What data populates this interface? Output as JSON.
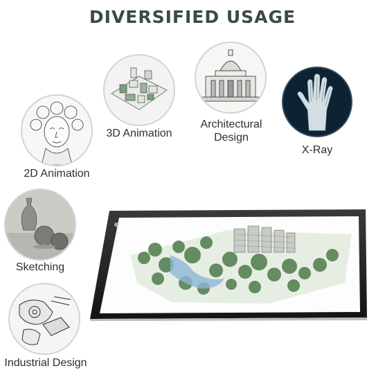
{
  "header": {
    "title": "DIVERSIFIED USAGE"
  },
  "usages": {
    "animation_3d": {
      "label": "3D Animation",
      "icon": "city-model-icon"
    },
    "architectural": {
      "label_line1": "Architectural",
      "label_line2": "Design",
      "icon": "domed-building-icon"
    },
    "xray": {
      "label": "X-Ray",
      "icon": "hand-xray-icon"
    },
    "animation_2d": {
      "label": "2D Animation",
      "icon": "sketched-face-icon"
    },
    "sketching": {
      "label": "Sketching",
      "icon": "still-life-vase-icon"
    },
    "industrial": {
      "label": "Industrial Design",
      "icon": "mechanical-sketch-icon"
    }
  },
  "product": {
    "icon": "light-pad-tablet-icon"
  },
  "colors": {
    "title": "#3a4a47",
    "xray_bg": "#0d2233",
    "tablet_frame": "#1f1f1f",
    "landscape_green": "#4f7a4a"
  }
}
